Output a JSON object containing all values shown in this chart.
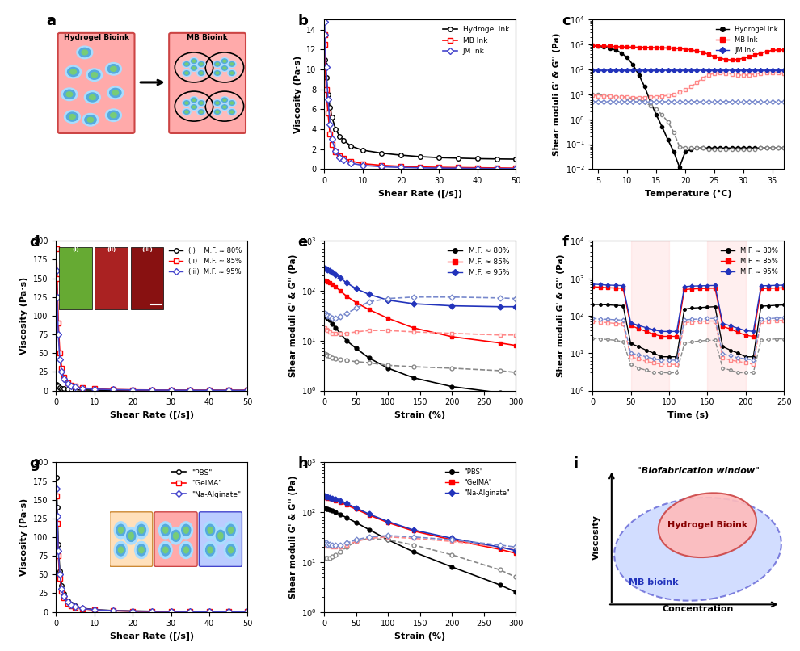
{
  "panel_labels": [
    "a",
    "b",
    "c",
    "d",
    "e",
    "f",
    "g",
    "h",
    "i"
  ],
  "b_shear_rates": [
    0.1,
    0.2,
    0.5,
    1.0,
    1.5,
    2.0,
    3.0,
    4.0,
    5.0,
    7.0,
    10.0,
    15.0,
    20.0,
    25.0,
    30.0,
    35.0,
    40.0,
    45.0,
    50.0
  ],
  "b_hydrogel": [
    11.0,
    10.5,
    9.2,
    7.5,
    6.2,
    5.2,
    4.0,
    3.3,
    2.9,
    2.3,
    1.9,
    1.6,
    1.4,
    1.25,
    1.15,
    1.1,
    1.05,
    1.02,
    1.0
  ],
  "b_mb": [
    13.5,
    12.5,
    8.0,
    5.6,
    3.5,
    2.5,
    1.7,
    1.3,
    1.1,
    0.8,
    0.55,
    0.38,
    0.28,
    0.22,
    0.18,
    0.16,
    0.14,
    0.12,
    0.1
  ],
  "b_jm": [
    14.8,
    13.5,
    10.2,
    7.0,
    4.5,
    3.0,
    1.8,
    1.2,
    0.9,
    0.6,
    0.38,
    0.24,
    0.17,
    0.13,
    0.1,
    0.09,
    0.07,
    0.06,
    0.05
  ],
  "c_temp": [
    4,
    5,
    6,
    7,
    8,
    9,
    10,
    11,
    12,
    13,
    14,
    15,
    16,
    17,
    18,
    19,
    20,
    21,
    22,
    23,
    24,
    25,
    26,
    27,
    28,
    29,
    30,
    31,
    32,
    33,
    34,
    35,
    36,
    37
  ],
  "c_hyd_gprime": [
    900,
    850,
    780,
    700,
    600,
    450,
    300,
    150,
    60,
    20,
    5,
    1.5,
    0.5,
    0.15,
    0.05,
    0.012,
    0.05,
    0.06,
    0.07,
    0.07,
    0.07,
    0.07,
    0.07,
    0.07,
    0.07,
    0.07,
    0.07,
    0.07,
    0.07,
    0.07,
    0.07,
    0.07,
    0.07,
    0.07
  ],
  "c_hyd_gdp": [
    10,
    9.5,
    9,
    8.5,
    8,
    8,
    7.5,
    7,
    6.5,
    5,
    3.5,
    2.5,
    1.5,
    0.8,
    0.3,
    0.08,
    0.07,
    0.07,
    0.07,
    0.07,
    0.06,
    0.06,
    0.06,
    0.06,
    0.06,
    0.06,
    0.06,
    0.06,
    0.06,
    0.07,
    0.07,
    0.07,
    0.07,
    0.07
  ],
  "c_mb_gprime": [
    900,
    880,
    860,
    840,
    820,
    800,
    790,
    780,
    770,
    760,
    750,
    740,
    730,
    720,
    700,
    680,
    650,
    600,
    540,
    480,
    400,
    330,
    280,
    250,
    240,
    250,
    280,
    320,
    380,
    450,
    520,
    580,
    600,
    600
  ],
  "c_mb_gdp": [
    9,
    8.8,
    8.5,
    8.2,
    8.0,
    7.8,
    7.6,
    7.5,
    7.5,
    7.5,
    7.8,
    8.0,
    8.5,
    9.0,
    10,
    12,
    15,
    20,
    30,
    45,
    60,
    70,
    72,
    70,
    65,
    60,
    58,
    60,
    65,
    70,
    75,
    75,
    72,
    70
  ],
  "c_jm_gprime": [
    90,
    90,
    90,
    90,
    90,
    90,
    90,
    90,
    90,
    90,
    90,
    90,
    90,
    90,
    90,
    90,
    90,
    90,
    90,
    90,
    90,
    90,
    90,
    90,
    90,
    90,
    90,
    90,
    90,
    90,
    90,
    90,
    90,
    90
  ],
  "c_jm_gdp": [
    5,
    5,
    5,
    5,
    5,
    5,
    5,
    5,
    5,
    5,
    5,
    5,
    5,
    5,
    5,
    5,
    5,
    5,
    5,
    5,
    5,
    5,
    5,
    5,
    5,
    5,
    5,
    5,
    5,
    5,
    5,
    5,
    5,
    5
  ],
  "d_shear_rates": [
    0.1,
    0.3,
    0.6,
    1.0,
    1.5,
    2.0,
    3.0,
    4.0,
    5.0,
    7.0,
    10.0,
    15.0,
    20.0,
    25.0,
    30.0,
    35.0,
    40.0,
    45.0,
    50.0
  ],
  "d_mf80": [
    8.0,
    7.2,
    5.5,
    3.8,
    2.8,
    2.2,
    1.5,
    1.1,
    0.9,
    0.65,
    0.45,
    0.3,
    0.22,
    0.18,
    0.15,
    0.12,
    0.11,
    0.1,
    0.09
  ],
  "d_mf85": [
    190,
    150,
    90,
    50,
    30,
    18,
    10,
    7,
    5.5,
    3.5,
    2.2,
    1.3,
    0.9,
    0.7,
    0.55,
    0.45,
    0.38,
    0.32,
    0.28
  ],
  "d_mf95": [
    160,
    125,
    75,
    42,
    25,
    16,
    9,
    6,
    4.8,
    3.0,
    1.9,
    1.1,
    0.75,
    0.58,
    0.46,
    0.38,
    0.32,
    0.27,
    0.23
  ],
  "e_strain": [
    1,
    3,
    5,
    8,
    12,
    18,
    25,
    35,
    50,
    70,
    100,
    140,
    200,
    275,
    300
  ],
  "e_mf80_gprime": [
    32,
    30,
    28,
    26,
    22,
    18,
    14,
    10,
    7,
    4.5,
    2.8,
    1.8,
    1.2,
    0.9,
    0.8
  ],
  "e_mf80_gdp": [
    5.5,
    5.3,
    5.0,
    4.8,
    4.5,
    4.3,
    4.2,
    4.0,
    3.8,
    3.6,
    3.2,
    3.0,
    2.8,
    2.5,
    2.3
  ],
  "e_mf85_gprime": [
    160,
    155,
    150,
    145,
    135,
    120,
    100,
    78,
    58,
    42,
    28,
    18,
    12,
    9,
    8
  ],
  "e_mf85_gdp": [
    18,
    17,
    16,
    15,
    14,
    14,
    14,
    14,
    15,
    16,
    16,
    15,
    14,
    13,
    13
  ],
  "e_mf95_gprime": [
    280,
    270,
    260,
    250,
    235,
    210,
    180,
    145,
    110,
    85,
    65,
    55,
    50,
    48,
    48
  ],
  "e_mf95_gdp": [
    35,
    34,
    32,
    30,
    28,
    28,
    30,
    35,
    45,
    60,
    70,
    75,
    75,
    72,
    70
  ],
  "f_time": [
    0,
    10,
    20,
    30,
    40,
    50,
    60,
    70,
    80,
    90,
    100,
    110,
    120,
    130,
    140,
    150,
    160,
    170,
    180,
    190,
    200,
    210,
    220,
    230,
    240,
    250
  ],
  "f_mf80_gprime": [
    200,
    200,
    195,
    190,
    185,
    18,
    15,
    12,
    10,
    8,
    8,
    8,
    150,
    160,
    165,
    170,
    175,
    15,
    12,
    10,
    8,
    8,
    180,
    185,
    190,
    195
  ],
  "f_mf80_gdp": [
    25,
    24,
    23,
    22,
    20,
    5,
    4,
    3.5,
    3,
    3,
    3,
    3,
    18,
    20,
    21,
    22,
    22,
    4,
    3.5,
    3,
    3,
    3,
    22,
    23,
    24,
    24
  ],
  "f_mf85_gprime": [
    600,
    580,
    560,
    550,
    540,
    55,
    45,
    38,
    32,
    28,
    28,
    28,
    500,
    520,
    530,
    540,
    545,
    52,
    44,
    36,
    30,
    28,
    530,
    540,
    550,
    560
  ],
  "f_mf85_gdp": [
    70,
    68,
    65,
    62,
    60,
    8,
    7,
    6,
    5.5,
    5,
    5,
    5,
    65,
    68,
    70,
    72,
    72,
    7.5,
    6.5,
    6,
    5.5,
    5,
    70,
    72,
    74,
    75
  ],
  "f_mf95_gprime": [
    700,
    680,
    660,
    650,
    640,
    65,
    55,
    48,
    42,
    38,
    38,
    38,
    600,
    620,
    630,
    640,
    645,
    62,
    54,
    46,
    40,
    38,
    630,
    640,
    650,
    660
  ],
  "f_mf95_gdp": [
    85,
    82,
    80,
    78,
    76,
    10,
    9,
    8,
    7,
    6.5,
    6.5,
    6.5,
    78,
    80,
    82,
    84,
    85,
    9.5,
    8.5,
    7.5,
    7,
    6.5,
    82,
    84,
    86,
    88
  ],
  "g_shear_rates": [
    0.1,
    0.3,
    0.6,
    1.0,
    1.5,
    2.0,
    3.0,
    4.0,
    5.0,
    7.0,
    10.0,
    15.0,
    20.0,
    25.0,
    30.0,
    35.0,
    40.0,
    45.0,
    50.0
  ],
  "g_pbs": [
    180,
    140,
    90,
    55,
    35,
    24,
    15,
    10,
    8,
    5,
    3,
    1.8,
    1.2,
    0.9,
    0.7,
    0.58,
    0.48,
    0.4,
    0.34
  ],
  "g_gelma": [
    155,
    118,
    75,
    45,
    28,
    19,
    12,
    8.5,
    6.5,
    4.2,
    2.5,
    1.5,
    1.0,
    0.78,
    0.6,
    0.5,
    0.42,
    0.35,
    0.3
  ],
  "g_naalginate": [
    165,
    128,
    82,
    50,
    31,
    21,
    13.5,
    9.5,
    7.2,
    4.6,
    2.8,
    1.65,
    1.1,
    0.84,
    0.65,
    0.54,
    0.45,
    0.38,
    0.32
  ],
  "h_strain": [
    1,
    3,
    5,
    8,
    12,
    18,
    25,
    35,
    50,
    70,
    100,
    140,
    200,
    275,
    300
  ],
  "h_pbs_gprime": [
    120,
    118,
    115,
    112,
    108,
    100,
    90,
    78,
    62,
    45,
    28,
    16,
    8,
    3.5,
    2.5
  ],
  "h_pbs_gdp": [
    12,
    12,
    12,
    12,
    13,
    14,
    16,
    20,
    26,
    30,
    28,
    22,
    14,
    7,
    5
  ],
  "h_gelma_gprime": [
    200,
    196,
    192,
    188,
    182,
    172,
    158,
    140,
    115,
    88,
    62,
    42,
    28,
    18,
    15
  ],
  "h_gelma_gdp": [
    22,
    22,
    21,
    21,
    20,
    20,
    20,
    22,
    26,
    30,
    32,
    30,
    26,
    20,
    18
  ],
  "h_naalginate_gprime": [
    210,
    206,
    202,
    198,
    192,
    182,
    168,
    150,
    122,
    92,
    65,
    44,
    30,
    20,
    17
  ],
  "h_naalginate_gdp": [
    24,
    24,
    23,
    23,
    22,
    22,
    22,
    24,
    28,
    32,
    34,
    32,
    28,
    22,
    20
  ]
}
